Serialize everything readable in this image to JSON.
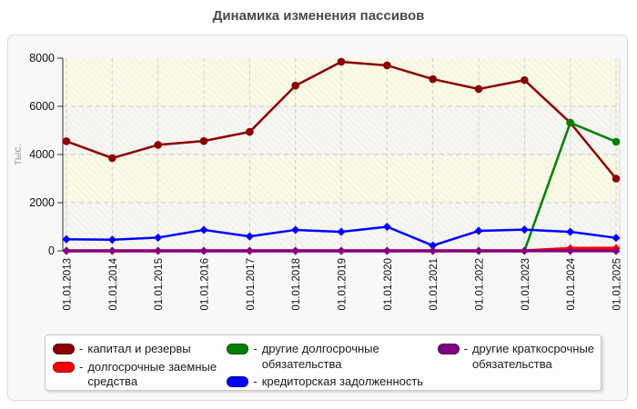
{
  "chart_data": {
    "type": "line",
    "title": "Динамика изменения пассивов",
    "ylabel": "тыс.",
    "ylim": [
      0,
      8000
    ],
    "yticks": [
      0,
      2000,
      4000,
      6000,
      8000
    ],
    "grid": true,
    "legend_position": "bottom",
    "categories": [
      "01.01.2013",
      "01.01.2014",
      "01.01.2015",
      "01.01.2016",
      "01.01.2017",
      "01.01.2018",
      "01.01.2019",
      "01.01.2020",
      "01.01.2021",
      "01.01.2022",
      "01.01.2023",
      "01.01.2024",
      "01.01.2025"
    ],
    "series": [
      {
        "name": "капитал и резервы",
        "color": "#8B0000",
        "marker": "circle",
        "line_width": 2.5,
        "values": [
          4550,
          3850,
          4400,
          4560,
          4940,
          6860,
          7850,
          7700,
          7130,
          6720,
          7090,
          5320,
          3000
        ]
      },
      {
        "name": "долгосрочные заемные средства",
        "color": "#FF0000",
        "marker": "diamond",
        "line_width": 3.5,
        "skip_zero_markers": true,
        "values": [
          0,
          0,
          0,
          0,
          0,
          0,
          0,
          0,
          0,
          0,
          0,
          100,
          110
        ]
      },
      {
        "name": "другие долгосрочные обязательства",
        "color": "#008000",
        "marker": "circle",
        "line_width": 2.5,
        "skip_zero_markers": true,
        "values": [
          0,
          0,
          0,
          0,
          0,
          0,
          0,
          0,
          0,
          0,
          0,
          5320,
          4530
        ]
      },
      {
        "name": "кредиторская задолженность",
        "color": "#0000FF",
        "marker": "diamond",
        "line_width": 2.5,
        "values": [
          480,
          460,
          550,
          870,
          600,
          870,
          790,
          1000,
          220,
          830,
          880,
          790,
          540
        ]
      },
      {
        "name": "другие краткосрочные обязательства",
        "color": "#800080",
        "marker": "diamond",
        "line_width": 3.2,
        "values": [
          0,
          0,
          0,
          0,
          0,
          0,
          0,
          0,
          0,
          0,
          0,
          0,
          0
        ]
      }
    ],
    "legend": {
      "separator": "-",
      "columns": [
        [
          0,
          1
        ],
        [
          2,
          3
        ],
        [
          4
        ]
      ]
    },
    "plot_background": {
      "bands": [
        "#fafae6",
        "#f6f6f3"
      ],
      "hatch": true
    }
  }
}
